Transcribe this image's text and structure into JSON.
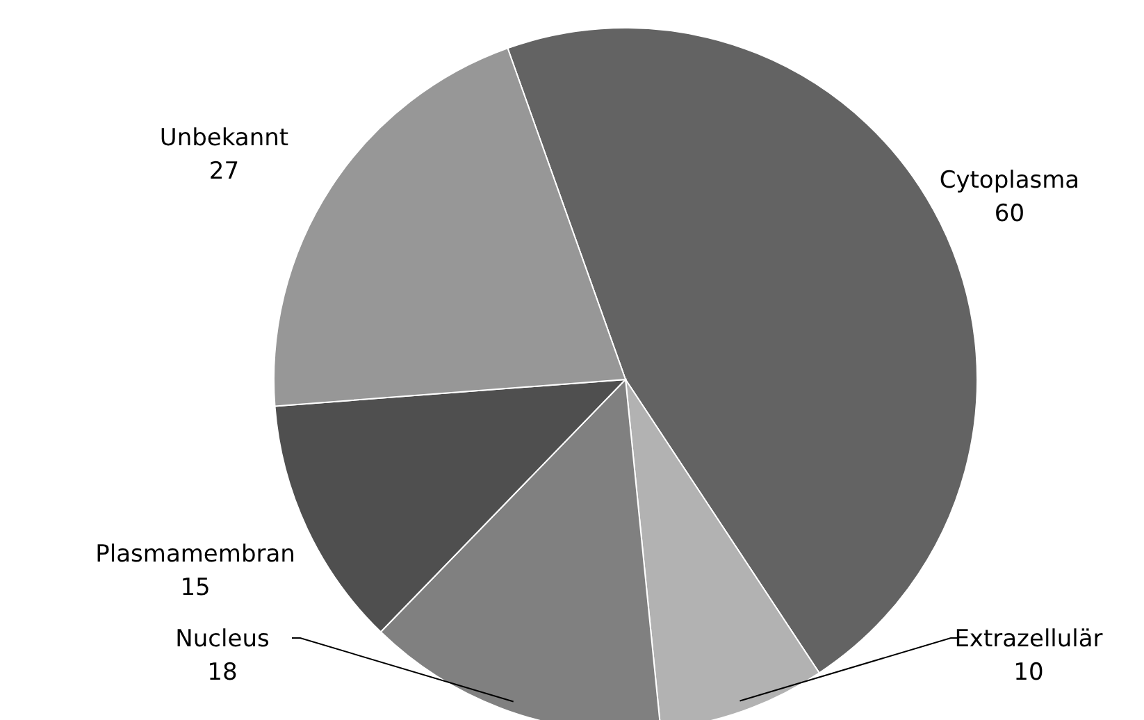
{
  "chart_data": {
    "type": "pie",
    "categories": [
      "Cytoplasma",
      "Extrazellulär",
      "Nucleus",
      "Plasmamembran",
      "Unbekannt"
    ],
    "values": [
      60,
      10,
      18,
      15,
      27
    ],
    "colors": [
      "#636363",
      "#b2b2b2",
      "#808080",
      "#4f4f4f",
      "#979797"
    ],
    "data_labels": true,
    "legend": false
  }
}
